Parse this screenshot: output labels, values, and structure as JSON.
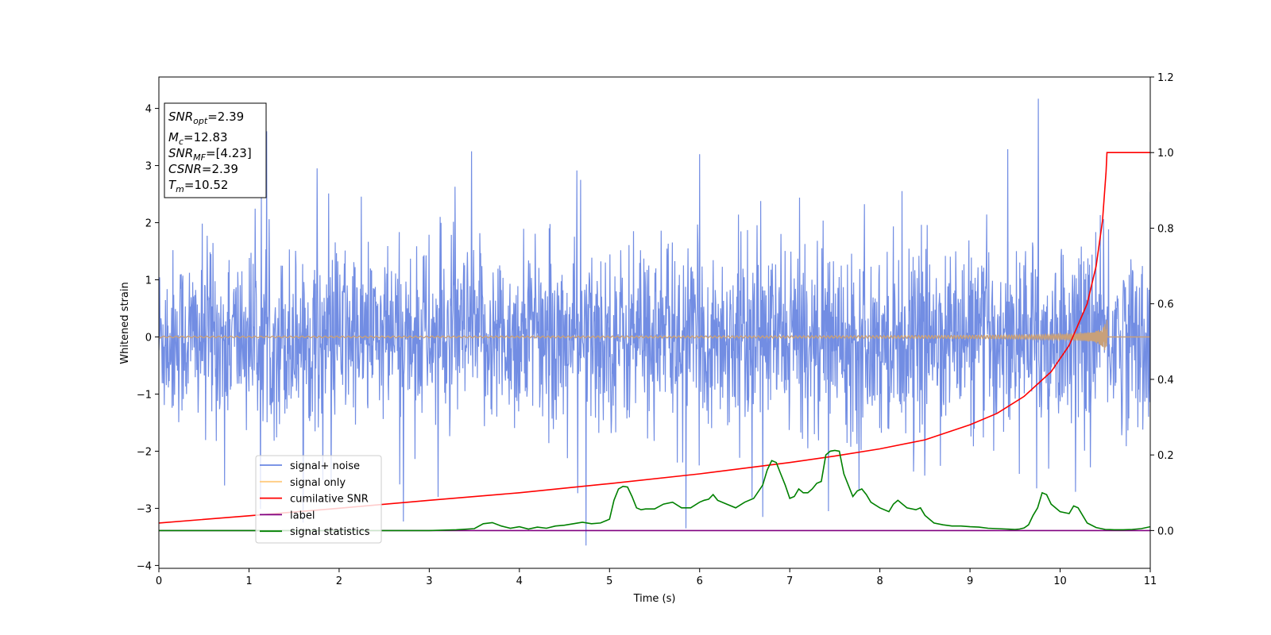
{
  "chart_data": {
    "type": "line",
    "xlabel": "Time (s)",
    "ylabel": "Whitened strain",
    "xlim": [
      0,
      11
    ],
    "ylim_left": [
      -4.05,
      4.55
    ],
    "ylim_right": [
      -0.1,
      1.2
    ],
    "xticks": [
      "0",
      "1",
      "2",
      "3",
      "4",
      "5",
      "6",
      "7",
      "8",
      "9",
      "10",
      "11"
    ],
    "yticks_left": [
      "−4",
      "−3",
      "−2",
      "−1",
      "0",
      "1",
      "2",
      "3",
      "4"
    ],
    "yticks_right": [
      "0.0",
      "0.2",
      "0.4",
      "0.6",
      "0.8",
      "1.0",
      "1.2"
    ],
    "annotation": {
      "lines": [
        {
          "var": "SNR",
          "sub": "opt",
          "rest": "=2.39"
        },
        {
          "var": "M",
          "sub": "c",
          "rest": "=12.83"
        },
        {
          "var": "SNR",
          "sub": "MF",
          "rest": "=[4.23]"
        },
        {
          "var": "CSNR",
          "sub": "",
          "rest": "=2.39"
        },
        {
          "var": "T",
          "sub": "m",
          "rest": "=10.52"
        }
      ]
    },
    "legend": {
      "placement": "lower-left",
      "entries": [
        {
          "name": "signal+ noise",
          "color": "#6a87e2"
        },
        {
          "name": "signal only",
          "color": "#ffcc80"
        },
        {
          "name": "cumilative SNR",
          "color": "#ff0000"
        },
        {
          "name": "label",
          "color": "#800080"
        },
        {
          "name": "signal statistics",
          "color": "#008000"
        }
      ]
    },
    "series": [
      {
        "name": "signal+ noise",
        "axis": "left",
        "color": "#6a87e2",
        "kind": "noise",
        "std": 0.75,
        "x_range": [
          0,
          11
        ],
        "spikes": [
          [
            4.74,
            -3.65
          ],
          [
            9.76,
            4.17
          ],
          [
            3.47,
            3.25
          ],
          [
            0.73,
            -2.6
          ],
          [
            6.0,
            3.2
          ],
          [
            7.43,
            -3.05
          ],
          [
            5.85,
            -3.35
          ],
          [
            9.74,
            -2.65
          ],
          [
            1.6,
            -3.25
          ],
          [
            3.1,
            -2.8
          ],
          [
            6.7,
            -3.15
          ]
        ]
      },
      {
        "name": "signal only",
        "axis": "left",
        "color": "#c8a07a",
        "kind": "chirp",
        "t_merger": 10.52,
        "x_range": [
          0,
          11
        ],
        "peak": 0.4
      },
      {
        "name": "cumilative SNR",
        "axis": "right",
        "color": "#ff0000",
        "x": [
          0,
          1,
          2,
          3,
          4,
          5,
          6,
          7,
          7.5,
          8,
          8.5,
          9,
          9.3,
          9.6,
          9.9,
          10.1,
          10.3,
          10.4,
          10.47,
          10.51,
          10.52,
          11
        ],
        "y": [
          0.02,
          0.039,
          0.059,
          0.08,
          0.1,
          0.124,
          0.15,
          0.18,
          0.197,
          0.216,
          0.24,
          0.28,
          0.31,
          0.355,
          0.42,
          0.49,
          0.6,
          0.7,
          0.82,
          0.95,
          1.0,
          1.0
        ]
      },
      {
        "name": "label",
        "axis": "right",
        "color": "#800080",
        "x": [
          0,
          11
        ],
        "y": [
          0,
          0
        ]
      },
      {
        "name": "signal statistics",
        "axis": "right",
        "color": "#008000",
        "x": [
          0,
          0.5,
          1,
          1.5,
          2,
          2.5,
          3,
          3.3,
          3.5,
          3.6,
          3.7,
          3.8,
          3.9,
          4.0,
          4.1,
          4.2,
          4.3,
          4.4,
          4.5,
          4.6,
          4.7,
          4.8,
          4.9,
          5.0,
          5.05,
          5.1,
          5.15,
          5.2,
          5.25,
          5.3,
          5.35,
          5.4,
          5.5,
          5.6,
          5.7,
          5.8,
          5.9,
          6.0,
          6.05,
          6.1,
          6.15,
          6.2,
          6.3,
          6.4,
          6.5,
          6.6,
          6.7,
          6.75,
          6.8,
          6.85,
          6.9,
          6.95,
          7.0,
          7.05,
          7.1,
          7.15,
          7.2,
          7.25,
          7.3,
          7.35,
          7.4,
          7.45,
          7.5,
          7.55,
          7.6,
          7.7,
          7.75,
          7.8,
          7.85,
          7.9,
          8.0,
          8.1,
          8.15,
          8.2,
          8.3,
          8.4,
          8.45,
          8.5,
          8.6,
          8.7,
          8.8,
          8.9,
          9.0,
          9.1,
          9.2,
          9.3,
          9.4,
          9.5,
          9.55,
          9.6,
          9.65,
          9.7,
          9.75,
          9.8,
          9.85,
          9.9,
          10.0,
          10.1,
          10.15,
          10.2,
          10.3,
          10.4,
          10.5,
          10.6,
          10.7,
          10.8,
          10.9,
          11.0
        ],
        "y": [
          0.0,
          0.0,
          0.0,
          0.0,
          0.0,
          0.0,
          0.0,
          0.002,
          0.005,
          0.018,
          0.021,
          0.012,
          0.006,
          0.01,
          0.004,
          0.009,
          0.006,
          0.012,
          0.014,
          0.018,
          0.022,
          0.018,
          0.02,
          0.03,
          0.08,
          0.11,
          0.117,
          0.115,
          0.09,
          0.06,
          0.055,
          0.057,
          0.057,
          0.07,
          0.075,
          0.06,
          0.06,
          0.075,
          0.08,
          0.083,
          0.095,
          0.08,
          0.07,
          0.06,
          0.075,
          0.085,
          0.12,
          0.16,
          0.185,
          0.18,
          0.15,
          0.12,
          0.085,
          0.09,
          0.11,
          0.1,
          0.1,
          0.11,
          0.125,
          0.13,
          0.2,
          0.21,
          0.212,
          0.21,
          0.15,
          0.09,
          0.105,
          0.11,
          0.095,
          0.075,
          0.06,
          0.05,
          0.07,
          0.08,
          0.06,
          0.055,
          0.06,
          0.04,
          0.02,
          0.015,
          0.012,
          0.012,
          0.01,
          0.009,
          0.006,
          0.005,
          0.004,
          0.003,
          0.004,
          0.007,
          0.015,
          0.04,
          0.06,
          0.1,
          0.095,
          0.07,
          0.05,
          0.045,
          0.065,
          0.06,
          0.02,
          0.008,
          0.003,
          0.002,
          0.002,
          0.003,
          0.005,
          0.01
        ]
      }
    ]
  }
}
